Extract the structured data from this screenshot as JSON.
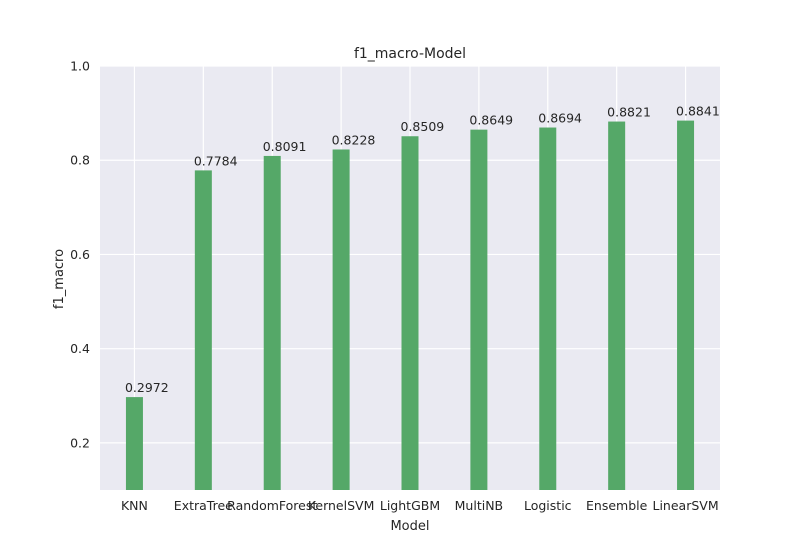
{
  "chart_data": {
    "type": "bar",
    "title": "f1_macro-Model",
    "xlabel": "Model",
    "ylabel": "f1_macro",
    "categories": [
      "KNN",
      "ExtraTree",
      "RandomForest",
      "KernelSVM",
      "LightGBM",
      "MultiNB",
      "Logistic",
      "Ensemble",
      "LinearSVM"
    ],
    "values": [
      0.2972,
      0.7784,
      0.8091,
      0.8228,
      0.8509,
      0.8649,
      0.8694,
      0.8821,
      0.8841
    ],
    "value_labels": [
      "0.2972",
      "0.7784",
      "0.8091",
      "0.8228",
      "0.8509",
      "0.8649",
      "0.8694",
      "0.8821",
      "0.8841"
    ],
    "ylim": [
      0.1,
      1.0
    ],
    "yticks": [
      0.2,
      0.4,
      0.6,
      0.8,
      1.0
    ],
    "ytick_labels": [
      "0.2",
      "0.4",
      "0.6",
      "0.8",
      "1.0"
    ],
    "grid": true,
    "legend": "none",
    "colors": {
      "bar": "#55a868",
      "plot_background": "#eaeaf2",
      "grid": "#ffffff"
    }
  }
}
